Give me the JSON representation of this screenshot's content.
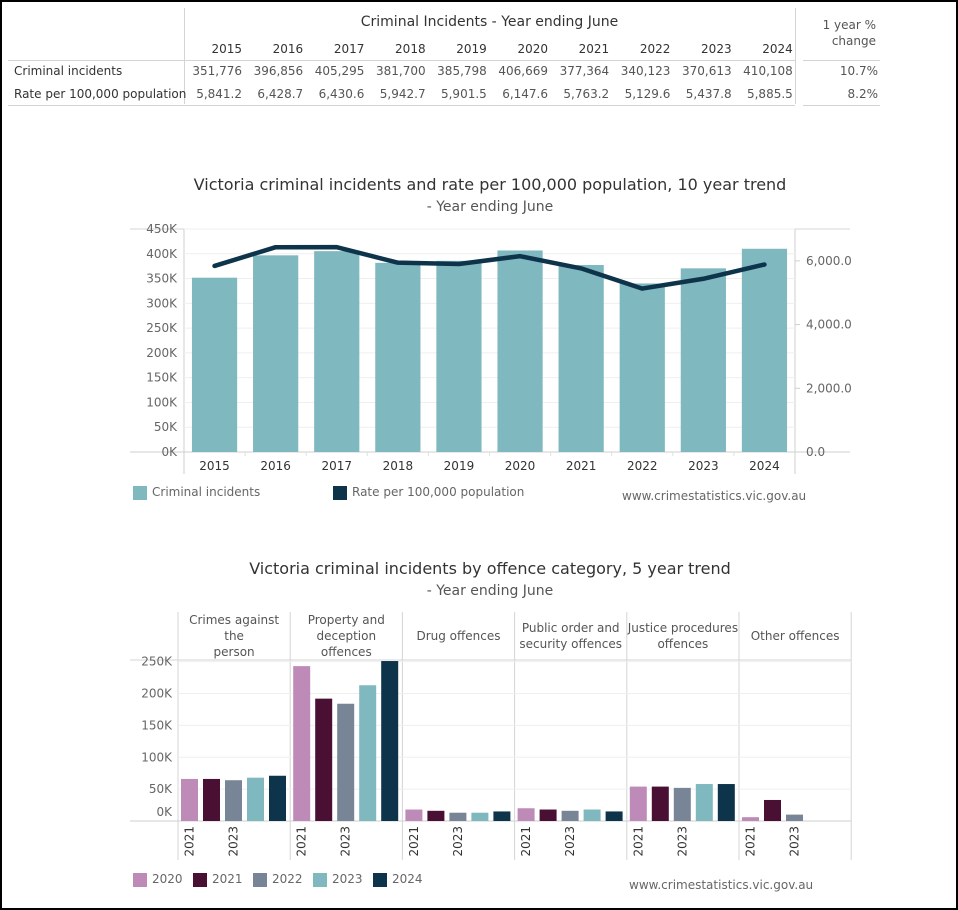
{
  "summary_table": {
    "title": "Criminal Incidents - Year ending June",
    "years": [
      "2015",
      "2016",
      "2017",
      "2018",
      "2019",
      "2020",
      "2021",
      "2022",
      "2023",
      "2024"
    ],
    "change_header_line1": "1 year %",
    "change_header_line2": "change",
    "rows": [
      {
        "label": "Criminal incidents",
        "values": [
          "351,776",
          "396,856",
          "405,295",
          "381,700",
          "385,798",
          "406,669",
          "377,364",
          "340,123",
          "370,613",
          "410,108"
        ],
        "change": "10.7%"
      },
      {
        "label": "Rate per 100,000 population",
        "values": [
          "5,841.2",
          "6,428.7",
          "6,430.6",
          "5,942.7",
          "5,901.5",
          "6,147.6",
          "5,763.2",
          "5,129.6",
          "5,437.8",
          "5,885.5"
        ],
        "change": "8.2%"
      }
    ]
  },
  "colors": {
    "teal": "#7fb8bf",
    "navy": "#0d344b",
    "pink": "#be8bb9",
    "plum": "#4a1034",
    "slate": "#788597"
  },
  "chart_data": [
    {
      "type": "bar+line",
      "title": "Victoria criminal incidents and rate per 100,000 population, 10 year trend",
      "subtitle": "- Year ending June",
      "categories": [
        "2015",
        "2016",
        "2017",
        "2018",
        "2019",
        "2020",
        "2021",
        "2022",
        "2023",
        "2024"
      ],
      "series": [
        {
          "name": "Criminal incidents",
          "type": "bar",
          "axis": "left",
          "values": [
            351776,
            396856,
            405295,
            381700,
            385798,
            406669,
            377364,
            340123,
            370613,
            410108
          ]
        },
        {
          "name": "Rate per 100,000 population",
          "type": "line",
          "axis": "right",
          "values": [
            5841.2,
            6428.7,
            6430.6,
            5942.7,
            5901.5,
            6147.6,
            5763.2,
            5129.6,
            5437.8,
            5885.5
          ]
        }
      ],
      "left_axis": {
        "ylim": [
          0,
          450000
        ],
        "ticks": [
          0,
          50000,
          100000,
          150000,
          200000,
          250000,
          300000,
          350000,
          400000,
          450000
        ],
        "tick_labels": [
          "0K",
          "50K",
          "100K",
          "150K",
          "200K",
          "250K",
          "300K",
          "350K",
          "400K",
          "450K"
        ]
      },
      "right_axis": {
        "ylim": [
          0,
          7000
        ],
        "ticks": [
          0,
          2000,
          4000,
          6000
        ],
        "tick_labels": [
          "0.0",
          "2,000.0",
          "4,000.0",
          "6,000.0"
        ]
      },
      "legend": [
        {
          "label": "Criminal incidents",
          "color": "#7fb8bf"
        },
        {
          "label": "Rate per 100,000 population",
          "color": "#0d344b"
        }
      ],
      "legend_position": "bottom-left",
      "source": "www.crimestatistics.vic.gov.au",
      "grid": true
    },
    {
      "type": "bar",
      "title": "Victoria criminal incidents by offence category, 5 year trend",
      "subtitle": "- Year ending June",
      "panels": [
        {
          "name": "Crimes against the person",
          "lines": [
            "Crimes against the",
            "person"
          ],
          "values": [
            66000,
            66000,
            64000,
            68000,
            71000
          ]
        },
        {
          "name": "Property and deception offences",
          "lines": [
            "Property and",
            "deception offences"
          ],
          "values": [
            243000,
            192000,
            184000,
            213000,
            251000
          ]
        },
        {
          "name": "Drug offences",
          "lines": [
            "Drug offences"
          ],
          "values": [
            18000,
            16000,
            13000,
            13000,
            15000
          ]
        },
        {
          "name": "Public order and security offences",
          "lines": [
            "Public order and",
            "security offences"
          ],
          "values": [
            20000,
            18000,
            16000,
            18000,
            15000
          ]
        },
        {
          "name": "Justice procedures offences",
          "lines": [
            "Justice procedures",
            "offences"
          ],
          "values": [
            54000,
            54000,
            52000,
            58000,
            58000
          ]
        },
        {
          "name": "Other offences",
          "lines": [
            "Other offences"
          ],
          "values": [
            6000,
            33000,
            10000,
            null,
            null
          ]
        }
      ],
      "series_years": [
        "2020",
        "2021",
        "2022",
        "2023",
        "2024"
      ],
      "series_colors": [
        "#be8bb9",
        "#4a1034",
        "#788597",
        "#7fb8bf",
        "#0d344b"
      ],
      "x_tick_labels": [
        "2021",
        "2023"
      ],
      "y_axis": {
        "ylim": [
          0,
          260000
        ],
        "ticks": [
          0,
          50000,
          100000,
          150000,
          200000,
          250000
        ],
        "tick_labels": [
          "0K",
          "50K",
          "100K",
          "150K",
          "200K",
          "250K"
        ]
      },
      "legend": [
        {
          "label": "2020",
          "color": "#be8bb9"
        },
        {
          "label": "2021",
          "color": "#4a1034"
        },
        {
          "label": "2022",
          "color": "#788597"
        },
        {
          "label": "2023",
          "color": "#7fb8bf"
        },
        {
          "label": "2024",
          "color": "#0d344b"
        }
      ],
      "legend_position": "bottom-left",
      "source": "www.crimestatistics.vic.gov.au",
      "grid": true
    }
  ]
}
